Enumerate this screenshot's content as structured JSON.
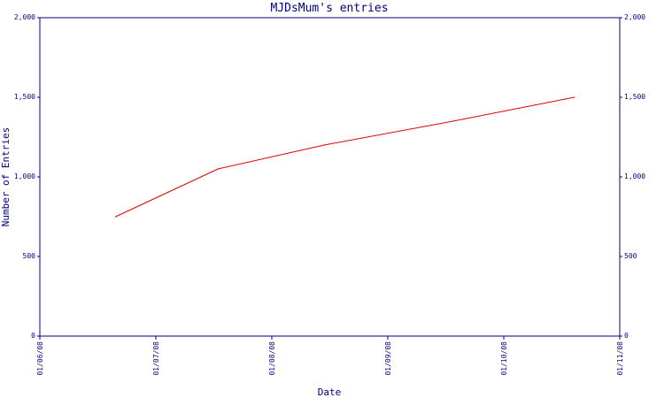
{
  "chart_data": {
    "type": "line",
    "title": "MJDsMum's entries",
    "xlabel": "Date",
    "ylabel": "Number of Entries",
    "x_tick_labels": [
      "01/06/08",
      "01/07/08",
      "01/08/08",
      "01/09/08",
      "01/10/08",
      "01/11/08"
    ],
    "y_ticks": [
      0,
      500,
      1000,
      1500,
      2000
    ],
    "y_tick_labels": [
      "0",
      "500",
      "1,000",
      "1,500",
      "2,000"
    ],
    "ylim": [
      0,
      2000
    ],
    "xlim": [
      "2008-06-01",
      "2008-11-01"
    ],
    "grid": false,
    "series": [
      {
        "color": "#e00000",
        "x": [
          "2008-06-21",
          "2008-07-18",
          "2008-08-15",
          "2008-09-18",
          "2008-10-20"
        ],
        "values": [
          750,
          1050,
          1200,
          1350,
          1500
        ]
      }
    ],
    "colors": {
      "axis": "#000080",
      "line": "#e00000"
    }
  }
}
